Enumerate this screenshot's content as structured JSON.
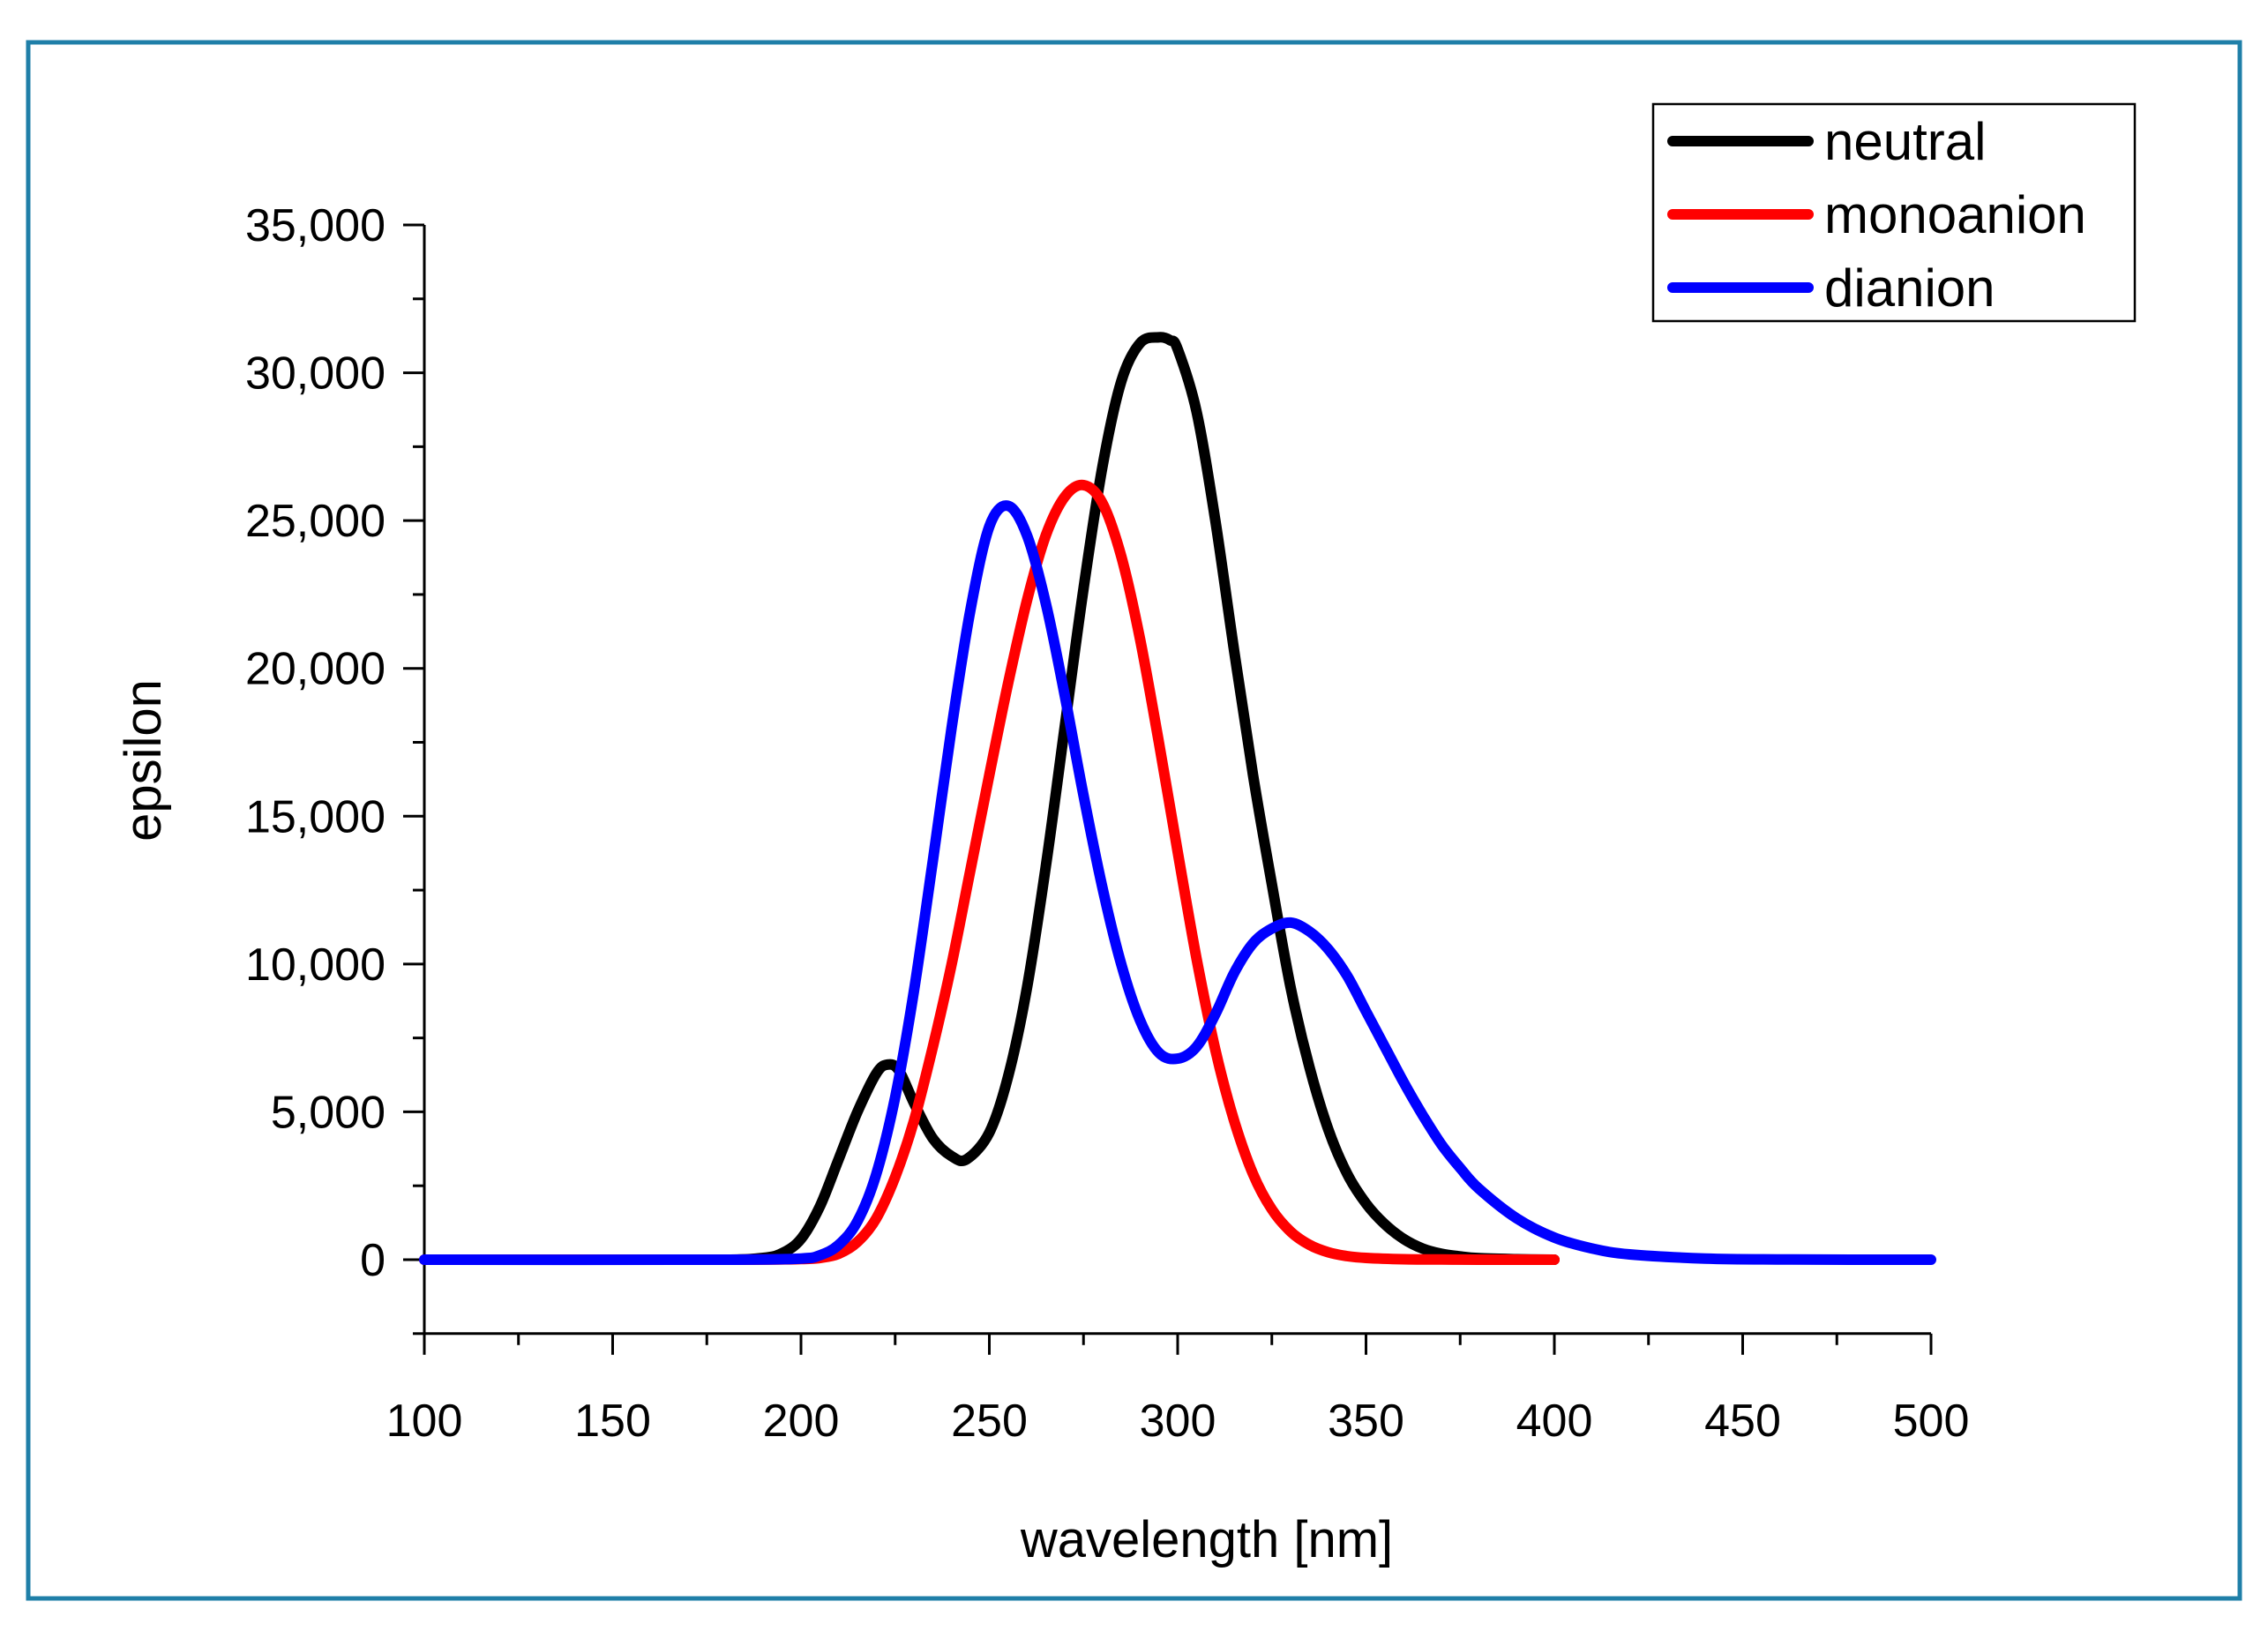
{
  "chart_data": {
    "type": "line",
    "title": "",
    "xlabel": "wavelength [nm]",
    "ylabel": "epsilon",
    "xlim": [
      100,
      500
    ],
    "ylim": [
      -2500,
      35000
    ],
    "x_ticks": [
      100,
      150,
      200,
      250,
      300,
      350,
      400,
      450,
      500
    ],
    "x_tick_labels": [
      "100",
      "150",
      "200",
      "250",
      "300",
      "350",
      "400",
      "450",
      "500"
    ],
    "y_ticks": [
      0,
      5000,
      10000,
      15000,
      20000,
      25000,
      30000,
      35000
    ],
    "y_tick_labels": [
      "0",
      "5,000",
      "10,000",
      "15,000",
      "20,000",
      "25,000",
      "30,000",
      "35,000"
    ],
    "grid": false,
    "legend_position": "top-right",
    "series": [
      {
        "name": "neutral",
        "color": "#000000",
        "x": [
          100,
          150,
          180,
          190,
          195,
          200,
          205,
          210,
          215,
          220,
          223,
          226,
          230,
          235,
          240,
          244,
          250,
          255,
          260,
          265,
          270,
          275,
          280,
          285,
          290,
          295,
          298,
          300,
          305,
          310,
          315,
          320,
          325,
          330,
          335,
          340,
          345,
          350,
          355,
          360,
          365,
          370,
          375,
          380,
          390,
          400
        ],
        "y": [
          0,
          0,
          0,
          60,
          220,
          700,
          1800,
          3400,
          5000,
          6300,
          6600,
          6400,
          5300,
          4100,
          3500,
          3400,
          4300,
          6200,
          9200,
          13300,
          18000,
          22700,
          26800,
          29700,
          31000,
          31200,
          31100,
          30800,
          28700,
          25000,
          20600,
          16400,
          12700,
          9200,
          6500,
          4400,
          2900,
          1900,
          1200,
          700,
          380,
          200,
          110,
          50,
          15,
          0
        ]
      },
      {
        "name": "monoanion",
        "color": "#ff0000",
        "x": [
          100,
          180,
          200,
          205,
          210,
          215,
          220,
          225,
          230,
          235,
          240,
          245,
          250,
          255,
          260,
          265,
          270,
          275,
          280,
          285,
          290,
          295,
          300,
          305,
          310,
          315,
          320,
          325,
          330,
          335,
          340,
          345,
          350,
          360,
          370,
          380,
          400
        ],
        "y": [
          0,
          0,
          20,
          60,
          200,
          600,
          1400,
          2800,
          4700,
          7200,
          10000,
          13200,
          16400,
          19500,
          22300,
          24500,
          25800,
          26200,
          25600,
          23800,
          21000,
          17500,
          13800,
          10200,
          7100,
          4700,
          2900,
          1700,
          950,
          500,
          250,
          120,
          60,
          15,
          5,
          0,
          0
        ]
      },
      {
        "name": "dianion",
        "color": "#0000ff",
        "x": [
          100,
          180,
          200,
          205,
          210,
          215,
          220,
          225,
          230,
          235,
          240,
          245,
          250,
          255,
          260,
          265,
          270,
          275,
          280,
          285,
          290,
          295,
          300,
          305,
          310,
          315,
          320,
          325,
          330,
          335,
          340,
          345,
          350,
          355,
          360,
          365,
          370,
          375,
          380,
          390,
          400,
          410,
          420,
          440,
          460,
          500
        ],
        "y": [
          0,
          0,
          40,
          150,
          500,
          1300,
          2900,
          5500,
          9100,
          13500,
          18000,
          22000,
          24800,
          25500,
          24500,
          22200,
          19100,
          15700,
          12600,
          10000,
          8100,
          7000,
          6800,
          7200,
          8300,
          9700,
          10700,
          11200,
          11400,
          11100,
          10500,
          9600,
          8400,
          7200,
          6000,
          4900,
          3900,
          3100,
          2400,
          1400,
          750,
          380,
          180,
          40,
          8,
          0
        ]
      }
    ]
  },
  "colors": {
    "frame_border": "#1f7fa8",
    "axis": "#000000",
    "background": "#ffffff"
  }
}
